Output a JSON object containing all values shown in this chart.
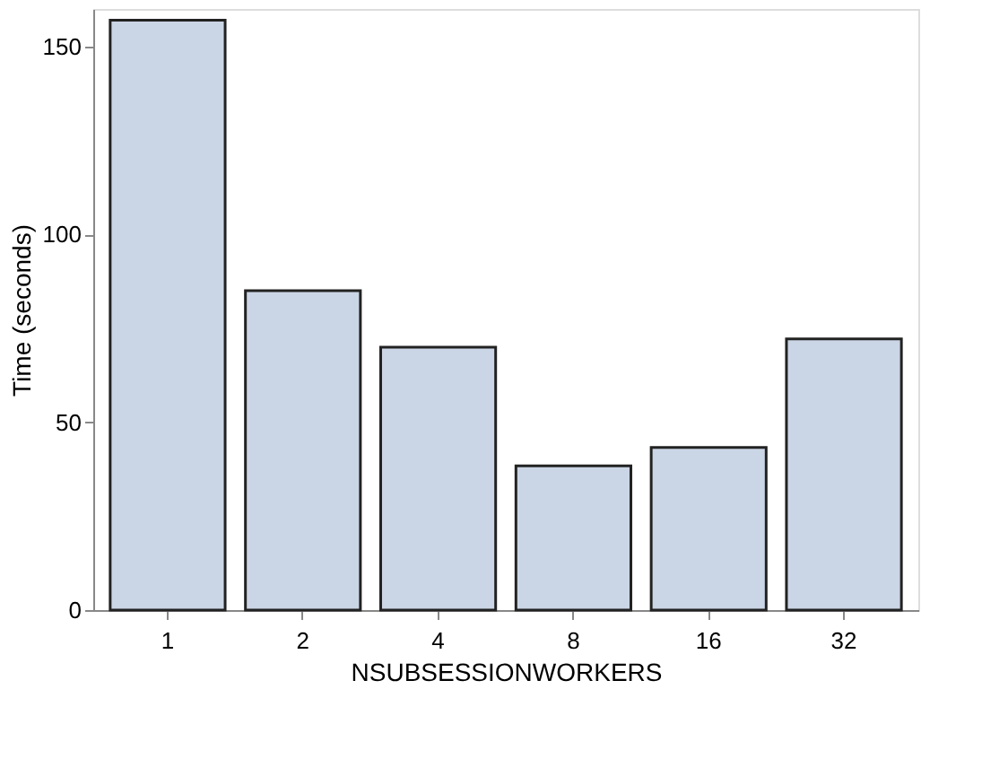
{
  "chart_data": {
    "type": "bar",
    "xlabel": "NSUBSESSIONWORKERS",
    "ylabel": "Time (seconds)",
    "categories": [
      "1",
      "2",
      "4",
      "8",
      "16",
      "32"
    ],
    "values": [
      157,
      85,
      70,
      38.4,
      43.3,
      72.2
    ],
    "color": "#cad5e5",
    "ylim": [
      0,
      160
    ],
    "yticks": [
      0,
      50,
      100,
      150
    ],
    "grid": false
  }
}
